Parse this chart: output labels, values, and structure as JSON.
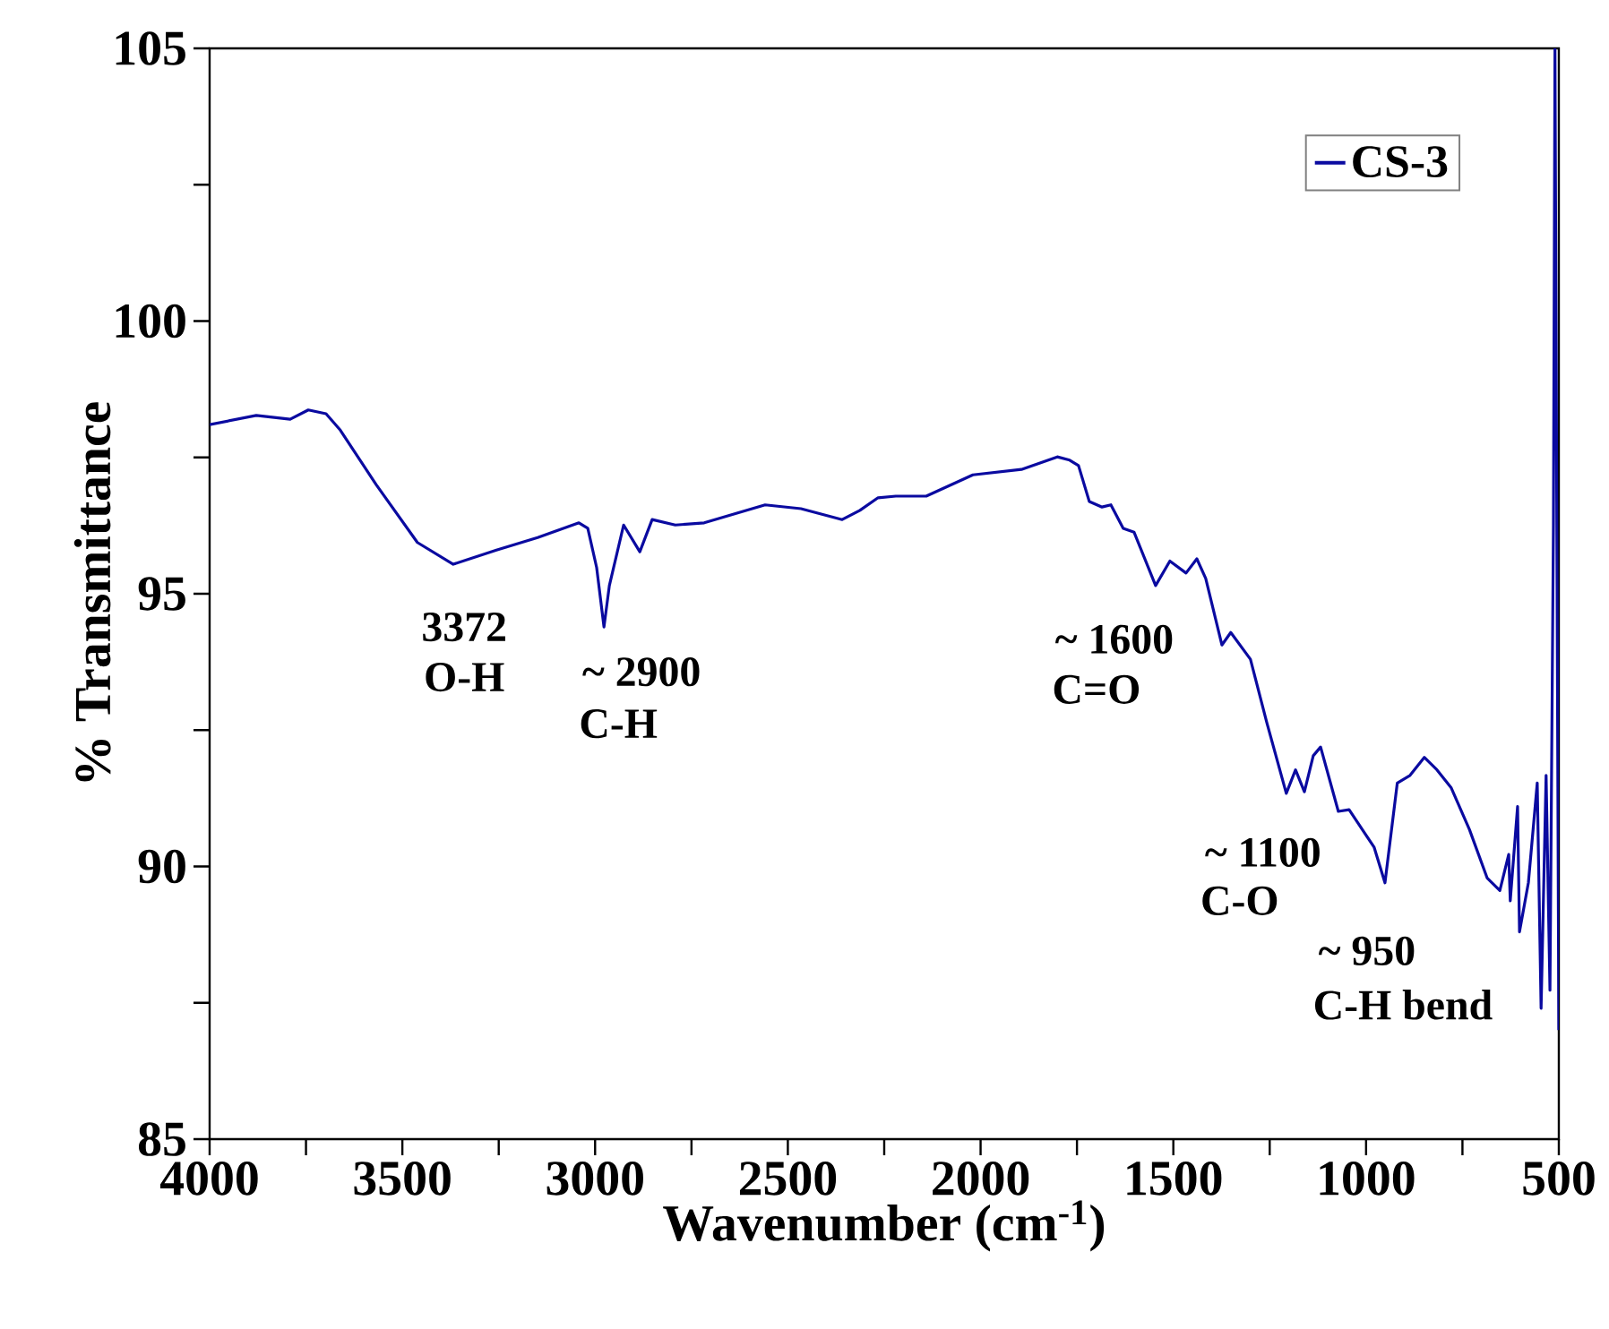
{
  "chart_data": {
    "type": "line",
    "xlabel": "Wavenumber (cm$^{-1}$)",
    "ylabel": "% Transmittance",
    "xlim": [
      4000,
      500
    ],
    "ylim": [
      85,
      105
    ],
    "xticks": [
      4000,
      {
        "value": 3750,
        "label": null
      },
      3500,
      {
        "value": 3250,
        "label": null
      },
      3000,
      {
        "value": 2750,
        "label": null
      },
      2500,
      {
        "value": 2250,
        "label": null
      },
      2000,
      {
        "value": 1750,
        "label": null
      },
      1500,
      {
        "value": 1250,
        "label": null
      },
      1000,
      {
        "value": 750,
        "label": null
      },
      500
    ],
    "yticks": [
      85,
      {
        "value": 87.5,
        "label": null
      },
      90,
      {
        "value": 92.5,
        "label": null
      },
      95,
      {
        "value": 97.5,
        "label": null
      },
      100,
      {
        "value": 102.5,
        "label": null
      },
      105
    ],
    "grid": false,
    "legend": "top right",
    "line_style": "solid",
    "marker": "none",
    "x": [
      4000,
      3879,
      3791,
      3744,
      3698,
      3661,
      3568,
      3461,
      3368,
      3256,
      3149,
      3042,
      3019,
      2996,
      2977,
      2963,
      2926,
      2884,
      2852,
      2792,
      2717,
      2559,
      2466,
      2359,
      2313,
      2266,
      2220,
      2141,
      2020,
      1894,
      1801,
      1769,
      1746,
      1718,
      1685,
      1662,
      1630,
      1602,
      1546,
      1509,
      1467,
      1439,
      1416,
      1374,
      1351,
      1300,
      1258,
      1207,
      1183,
      1160,
      1137,
      1118,
      1072,
      1044,
      979,
      951,
      919,
      886,
      849,
      816,
      779,
      732,
      686,
      653,
      630,
      626,
      607,
      602,
      579,
      556,
      546,
      533,
      523,
      514,
      510,
      500
    ],
    "series": [
      {
        "name": "CS-3",
        "color": "#0a0aa0",
        "values": [
          98.1,
          98.27,
          98.2,
          98.37,
          98.3,
          98.0,
          97.0,
          95.94,
          95.54,
          95.8,
          96.03,
          96.3,
          96.2,
          95.48,
          94.39,
          95.15,
          96.26,
          95.77,
          96.36,
          96.26,
          96.3,
          96.63,
          96.56,
          96.36,
          96.53,
          96.76,
          96.79,
          96.79,
          97.18,
          97.28,
          97.51,
          97.45,
          97.35,
          96.69,
          96.59,
          96.63,
          96.2,
          96.13,
          95.15,
          95.6,
          95.38,
          95.64,
          95.28,
          94.06,
          94.29,
          93.8,
          92.65,
          91.34,
          91.77,
          91.37,
          92.03,
          92.19,
          91.01,
          91.04,
          90.35,
          89.7,
          91.53,
          91.67,
          92.0,
          91.77,
          91.44,
          90.68,
          89.79,
          89.56,
          90.22,
          89.37,
          91.1,
          88.8,
          89.7,
          91.53,
          87.4,
          91.67,
          87.73,
          96.26,
          105,
          87.0
        ]
      }
    ],
    "annotations": [
      {
        "text": "3372",
        "x": 3372,
        "y": 95.54
      },
      {
        "text": "O-H",
        "x": 3372,
        "y": 95.54
      },
      {
        "text": "~ 2900",
        "x": 2977,
        "y": 94.39
      },
      {
        "text": "C-H",
        "x": 2977,
        "y": 94.39
      },
      {
        "text": "~ 1600",
        "x": 1546,
        "y": 95.15
      },
      {
        "text": "C=O",
        "x": 1546,
        "y": 95.15
      },
      {
        "text": "~ 1100",
        "x": 1207,
        "y": 91.34
      },
      {
        "text": "C-O",
        "x": 1207,
        "y": 91.34
      },
      {
        "text": "~ 950",
        "x": 951,
        "y": 89.7
      },
      {
        "text": "C-H bend",
        "x": 951,
        "y": 89.7
      }
    ]
  }
}
